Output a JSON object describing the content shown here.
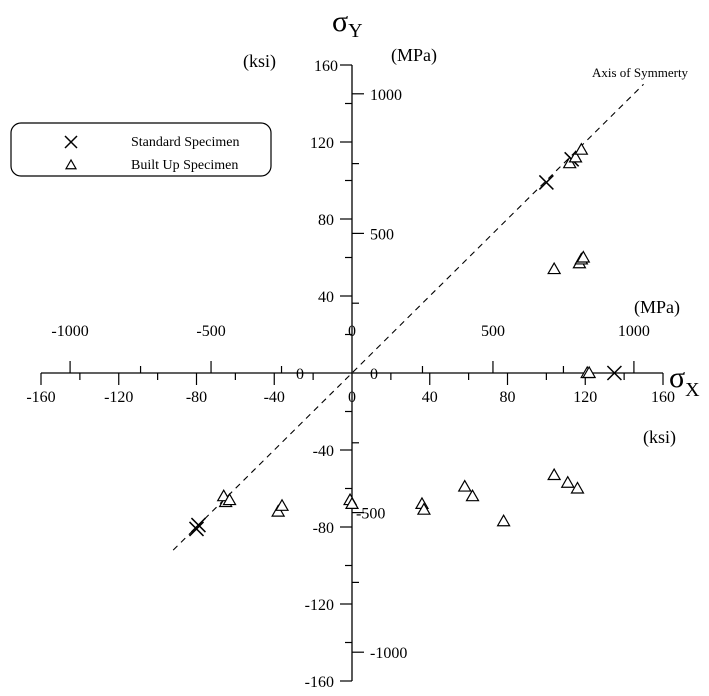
{
  "chart_data": {
    "type": "scatter",
    "title": "",
    "x_symbol": "σ",
    "x_subscript": "X",
    "y_symbol": "σ",
    "y_subscript": "Y",
    "x_unit_ksi": "(ksi)",
    "x_unit_mpa": "(MPa)",
    "y_unit_ksi": "(ksi)",
    "y_unit_mpa": "(MPa)",
    "xlim": [
      -160,
      160
    ],
    "ylim": [
      -160,
      160
    ],
    "x_ticks_ksi": [
      "-160",
      "-120",
      "-80",
      "-40",
      "0",
      "40",
      "80",
      "120",
      "160"
    ],
    "x_ticks_mpa": [
      "-1000",
      "-500",
      "0",
      "500",
      "1000"
    ],
    "y_ticks_ksi": [
      "160",
      "120",
      "80",
      "40",
      "0",
      "-40",
      "-80",
      "-120",
      "-160"
    ],
    "y_ticks_mpa": [
      "1000",
      "500",
      "0",
      "-500",
      "-1000"
    ],
    "grid": false,
    "legend_position": "top-left",
    "annotation": "Axis of Symmerty",
    "series": [
      {
        "name": "Standard Specimen",
        "marker": "x",
        "points": [
          [
            100,
            99
          ],
          [
            113,
            111
          ],
          [
            135,
            0
          ],
          [
            -79,
            -79
          ],
          [
            -80,
            -81
          ]
        ]
      },
      {
        "name": "Built Up Specimen",
        "marker": "triangle",
        "points": [
          [
            112,
            109
          ],
          [
            115,
            112
          ],
          [
            118,
            116
          ],
          [
            104,
            54
          ],
          [
            117,
            57
          ],
          [
            118,
            59
          ],
          [
            119,
            60
          ],
          [
            121,
            0
          ],
          [
            122,
            0
          ],
          [
            -65,
            -67
          ],
          [
            -66,
            -64
          ],
          [
            -63,
            -66
          ],
          [
            -38,
            -72
          ],
          [
            -36,
            -69
          ],
          [
            -1,
            -66
          ],
          [
            0,
            -68
          ],
          [
            36,
            -68
          ],
          [
            37,
            -71
          ],
          [
            58,
            -59
          ],
          [
            62,
            -64
          ],
          [
            78,
            -77
          ],
          [
            104,
            -53
          ],
          [
            111,
            -57
          ],
          [
            116,
            -60
          ]
        ]
      }
    ]
  }
}
